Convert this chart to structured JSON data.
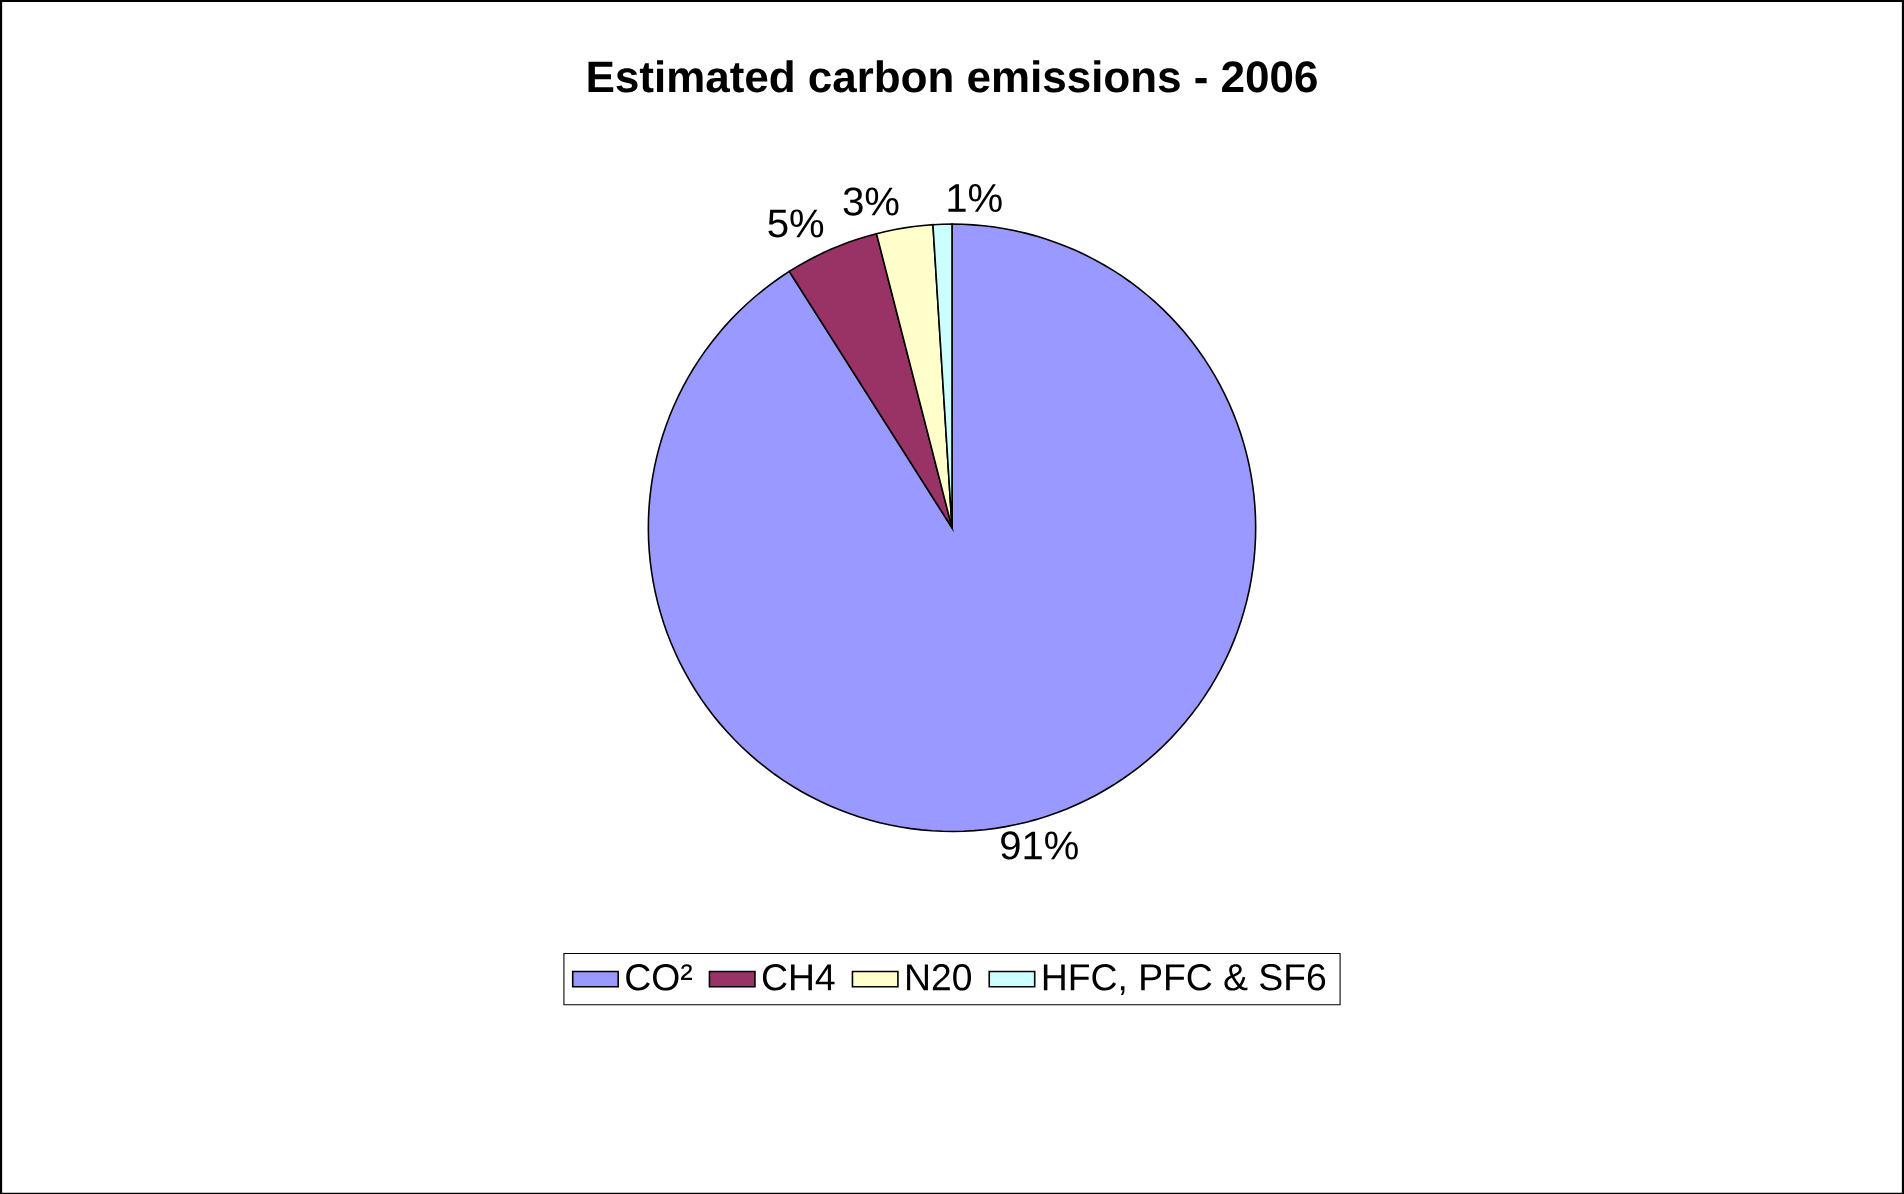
{
  "chart_data": {
    "type": "pie",
    "title": "Estimated carbon emissions - 2006",
    "categories": [
      "CO²",
      "CH4",
      "N20",
      "HFC, PFC & SF6"
    ],
    "values": [
      91,
      5,
      3,
      1
    ],
    "colors": [
      "#9999ff",
      "#993366",
      "#ffffcc",
      "#ccffff"
    ],
    "value_labels": [
      "91%",
      "5%",
      "3%",
      "1%"
    ],
    "legend": "bottom"
  }
}
